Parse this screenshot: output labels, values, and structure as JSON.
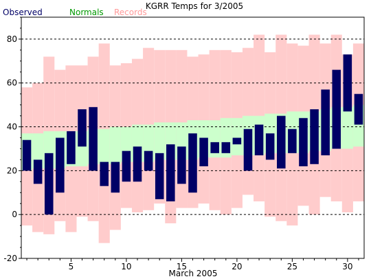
{
  "chart_data": {
    "type": "bar",
    "title": "KGRR Temps for 3/2005",
    "xlabel": "March 2005",
    "ylabel": "",
    "xlim": [
      0.5,
      31.5
    ],
    "ylim": [
      -20,
      90
    ],
    "x_ticks": [
      5,
      10,
      15,
      20,
      25,
      30
    ],
    "y_ticks": [
      -20,
      0,
      20,
      40,
      60,
      80
    ],
    "grid": "horizontal dashed",
    "legend": [
      "Observed",
      "Normals",
      "Records"
    ],
    "legend_placement": "top-left",
    "days": [
      1,
      2,
      3,
      4,
      5,
      6,
      7,
      8,
      9,
      10,
      11,
      12,
      13,
      14,
      15,
      16,
      17,
      18,
      19,
      20,
      21,
      22,
      23,
      24,
      25,
      26,
      27,
      28,
      29,
      30,
      31
    ],
    "series": [
      {
        "name": "Records",
        "color": "#ffcccc",
        "low": [
          -5,
          -8,
          -9,
          -3,
          -8,
          -1,
          -3,
          -13,
          -7,
          3,
          1,
          2,
          5,
          -4,
          3,
          3,
          5,
          2,
          0,
          3,
          9,
          6,
          -1,
          -3,
          -5,
          4,
          0,
          8,
          6,
          1,
          6
        ],
        "high": [
          58,
          60,
          72,
          66,
          68,
          68,
          72,
          78,
          68,
          69,
          71,
          76,
          75,
          75,
          75,
          72,
          73,
          75,
          75,
          74,
          76,
          82,
          74,
          82,
          78,
          77,
          82,
          78,
          82,
          73,
          78
        ]
      },
      {
        "name": "Normals",
        "color": "#ccffcc",
        "low": [
          20,
          21,
          21,
          21,
          22,
          22,
          23,
          23,
          23,
          24,
          24,
          24,
          25,
          25,
          25,
          25,
          26,
          26,
          26,
          27,
          27,
          27,
          28,
          28,
          28,
          28,
          29,
          29,
          30,
          30,
          31
        ],
        "high": [
          37,
          37,
          38,
          38,
          38,
          38,
          39,
          39,
          40,
          40,
          41,
          41,
          42,
          42,
          42,
          43,
          43,
          43,
          44,
          44,
          45,
          45,
          46,
          46,
          47,
          47,
          47,
          48,
          49,
          49,
          50
        ]
      },
      {
        "name": "Observed",
        "color": "#000066",
        "low": [
          20,
          14,
          0,
          10,
          23,
          31,
          20,
          13,
          10,
          15,
          15,
          20,
          7,
          6,
          14,
          10,
          22,
          28,
          28,
          32,
          20,
          27,
          25,
          21,
          28,
          22,
          23,
          27,
          30,
          47,
          41
        ],
        "high": [
          34,
          25,
          28,
          35,
          38,
          48,
          49,
          24,
          24,
          29,
          31,
          29,
          28,
          32,
          31,
          37,
          35,
          33,
          33,
          35,
          39,
          41,
          37,
          45,
          39,
          44,
          48,
          57,
          66,
          73,
          55
        ]
      }
    ]
  }
}
